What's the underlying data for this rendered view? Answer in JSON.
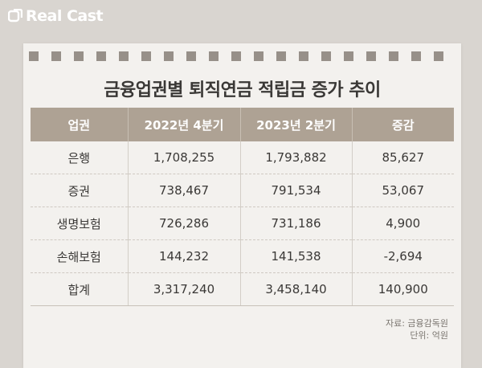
{
  "brand": {
    "name": "Real Cast"
  },
  "title": "금융업권별 퇴직연금 적립금 증가 추이",
  "table": {
    "headers": [
      "업권",
      "2022년 4분기",
      "2023년 2분기",
      "증감"
    ],
    "rows": [
      [
        "은행",
        "1,708,255",
        "1,793,882",
        "85,627"
      ],
      [
        "증권",
        "738,467",
        "791,534",
        "53,067"
      ],
      [
        "생명보험",
        "726,286",
        "731,186",
        "4,900"
      ],
      [
        "손해보험",
        "144,232",
        "141,538",
        "-2,694"
      ],
      [
        "합계",
        "3,317,240",
        "3,458,140",
        "140,900"
      ]
    ]
  },
  "notes": {
    "source": "자료: 금융감독원",
    "unit": "단위: 억원"
  },
  "colors": {
    "header": "#aea294",
    "background": "#d9d5d0",
    "paper": "#f3f1ee",
    "hole": "#979089"
  }
}
